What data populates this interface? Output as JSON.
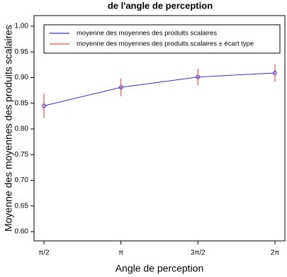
{
  "chart_data": {
    "type": "line",
    "title": "de l'angle de perception",
    "x_label": "Angle de perception",
    "y_label": "Moyenne des moyennes des produits scalaires",
    "categories": [
      "π/2",
      "π",
      "3π/2",
      "2π"
    ],
    "series": [
      {
        "name": "moyenne des moyennes des produits scalaires",
        "color": "#3333cc",
        "values": [
          0.845,
          0.881,
          0.901,
          0.909
        ]
      }
    ],
    "error_bars": {
      "name": "moyenne des moyennes des produits scalaires ± écart type",
      "color": "#ff4d4d",
      "values": [
        0.024,
        0.017,
        0.016,
        0.017
      ]
    },
    "ylim": [
      0.582,
      1.0207
    ],
    "yticks": [
      {
        "value": 0.6,
        "label": "0.60"
      },
      {
        "value": 0.65,
        "label": "0.65"
      },
      {
        "value": 0.7,
        "label": "0.70"
      },
      {
        "value": 0.75,
        "label": "0.75"
      },
      {
        "value": 0.8,
        "label": "0.80"
      },
      {
        "value": 0.85,
        "label": "0.85"
      },
      {
        "value": 0.9,
        "label": "0.90"
      },
      {
        "value": 0.95,
        "label": "0.95"
      },
      {
        "value": 1.0,
        "label": "1.00"
      }
    ],
    "legend": "top-left"
  }
}
